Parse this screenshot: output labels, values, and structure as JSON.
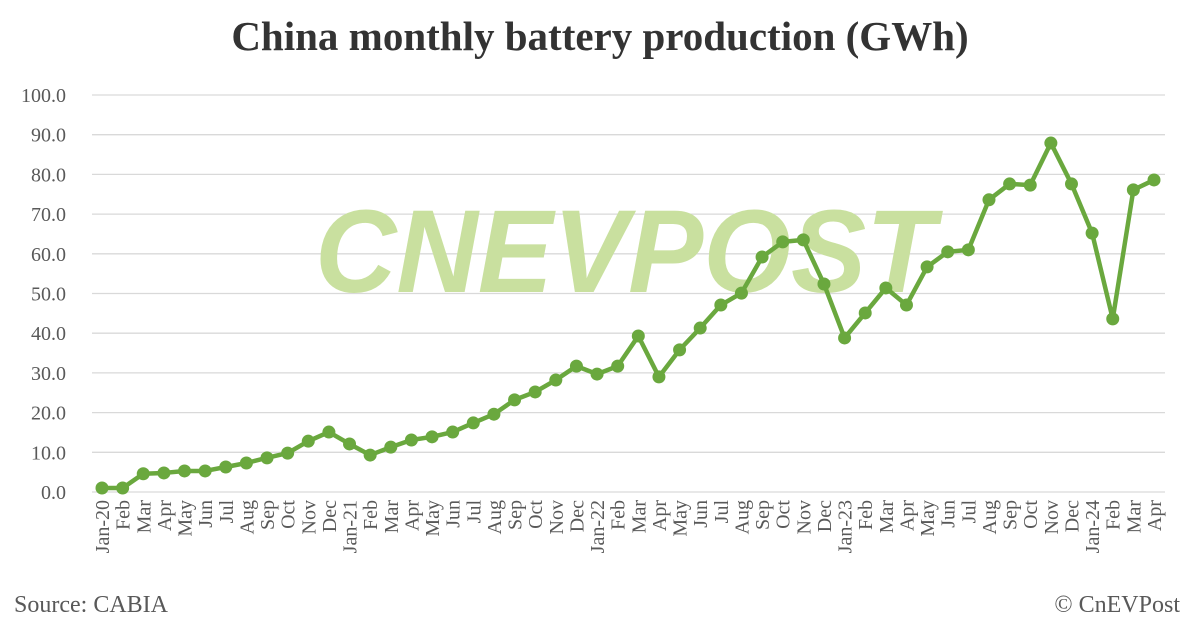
{
  "chart_data": {
    "type": "line",
    "title": "China monthly battery production (GWh)",
    "xlabel": "",
    "ylabel": "",
    "ylim": [
      0,
      100
    ],
    "yticks": [
      "0.0",
      "10.0",
      "20.0",
      "30.0",
      "40.0",
      "50.0",
      "60.0",
      "70.0",
      "80.0",
      "90.0",
      "100.0"
    ],
    "grid": true,
    "categories": [
      "Jan-20",
      "Feb",
      "Mar",
      "Apr",
      "May",
      "Jun",
      "Jul",
      "Aug",
      "Sep",
      "Oct",
      "Nov",
      "Dec",
      "Jan-21",
      "Feb",
      "Mar",
      "Apr",
      "May",
      "Jun",
      "Jul",
      "Aug",
      "Sep",
      "Oct",
      "Nov",
      "Dec",
      "Jan-22",
      "Feb",
      "Mar",
      "Apr",
      "May",
      "Jun",
      "Jul",
      "Aug",
      "Sep",
      "Oct",
      "Nov",
      "Dec",
      "Jan-23",
      "Feb",
      "Mar",
      "Apr",
      "May",
      "Jun",
      "Jul",
      "Aug",
      "Sep",
      "Oct",
      "Nov",
      "Dec",
      "Jan-24",
      "Feb",
      "Mar",
      "Apr"
    ],
    "series": [
      {
        "values": [
          1.0,
          1.0,
          4.6,
          4.8,
          5.3,
          5.3,
          6.3,
          7.3,
          8.6,
          9.8,
          12.8,
          15.1,
          12.1,
          9.3,
          11.3,
          13.1,
          13.9,
          15.1,
          17.4,
          19.6,
          23.2,
          25.2,
          28.2,
          31.7,
          29.7,
          31.7,
          39.3,
          29.0,
          35.8,
          41.3,
          47.1,
          50.1,
          59.2,
          63.0,
          63.5,
          52.4,
          38.8,
          45.1,
          51.4,
          47.1,
          56.7,
          60.5,
          61.0,
          73.6,
          77.6,
          77.3,
          87.9,
          77.6,
          65.2,
          43.6,
          76.1,
          78.6
        ],
        "color": "#6aa83e"
      }
    ],
    "watermark": "CNEVPOST",
    "watermark_color": "#c9e09f"
  },
  "footer": {
    "source": "Source: CABIA",
    "copyright": "© CnEVPost"
  }
}
